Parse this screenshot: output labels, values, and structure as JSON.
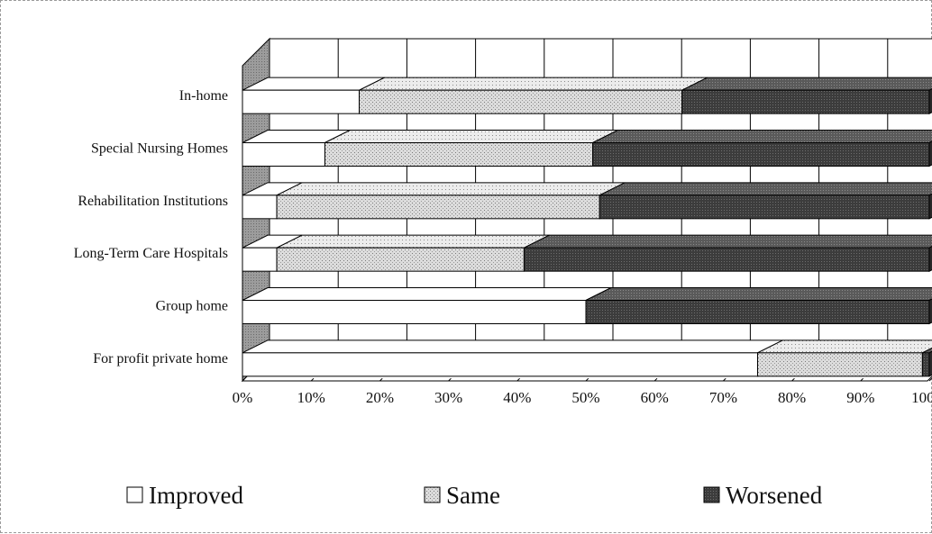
{
  "chart_data": {
    "type": "bar",
    "orientation": "horizontal",
    "stacked": "percent",
    "style_3d": true,
    "categories": [
      "In-home",
      "Special Nursing Homes",
      "Rehabilitation Institutions",
      "Long-Term Care Hospitals",
      "Group home",
      "For profit private home"
    ],
    "series": [
      {
        "name": "Improved",
        "values": [
          17,
          12,
          5,
          5,
          50,
          75
        ],
        "color": "#ffffff"
      },
      {
        "name": "Same",
        "values": [
          47,
          39,
          47,
          36,
          0,
          24
        ],
        "color": "#d4d4d4"
      },
      {
        "name": "Worsened",
        "values": [
          36,
          49,
          48,
          59,
          50,
          1
        ],
        "color": "#4a4a4a"
      }
    ],
    "xlim": [
      0,
      100
    ],
    "x_ticks": [
      "0%",
      "10%",
      "20%",
      "30%",
      "40%",
      "50%",
      "60%",
      "70%",
      "80%",
      "90%",
      "100%"
    ],
    "grid": true,
    "legend_position": "bottom",
    "title": "",
    "xlabel": "",
    "ylabel": ""
  }
}
